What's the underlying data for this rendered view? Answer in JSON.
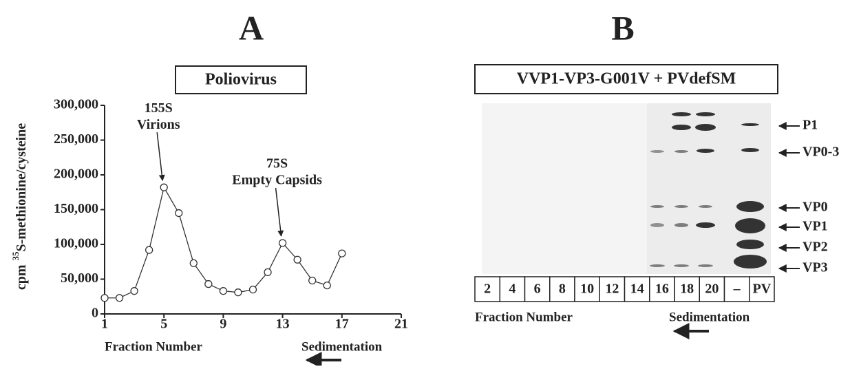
{
  "chart_data": {
    "type": "line",
    "title": "A",
    "subtitle": "Poliovirus",
    "y_label": "S-methionine/cysteine",
    "y_label_prefix": "cpm",
    "y_label_superscript": "35",
    "x_label": "Fraction Number",
    "x_direction_label": "Sedimentation",
    "x": [
      1,
      2,
      3,
      4,
      5,
      6,
      7,
      8,
      9,
      10,
      11,
      12,
      13,
      14,
      15,
      16,
      17
    ],
    "values": [
      23000,
      23000,
      33000,
      92000,
      182000,
      145000,
      73000,
      43000,
      33000,
      31000,
      35000,
      60000,
      102000,
      78000,
      48000,
      41000,
      87000
    ],
    "color": "#333333",
    "xlim": [
      1,
      21
    ],
    "xticks": [
      1,
      5,
      9,
      13,
      17,
      21
    ],
    "ylim": [
      0,
      300000
    ],
    "yticks": [
      0,
      {
        "value": 50000,
        "label": "50,000"
      },
      {
        "value": 100000,
        "label": "100,000"
      },
      {
        "value": 150000,
        "label": "150,000"
      },
      {
        "value": 200000,
        "label": "200,000"
      },
      {
        "value": 250000,
        "label": "250,000"
      },
      {
        "value": 300000,
        "label": "300,000"
      }
    ],
    "annotations": [
      {
        "lines": [
          "155S",
          "Virions"
        ],
        "x": 5
      },
      {
        "lines": [
          "75S",
          "Empty Capsids"
        ],
        "x": 13
      }
    ]
  },
  "panel_b": {
    "title": "B",
    "subtitle": "VVP1-VP3-G001V + PVdefSM",
    "lanes": [
      "2",
      "4",
      "6",
      "8",
      "10",
      "12",
      "14",
      "16",
      "18",
      "20",
      "–",
      "PV"
    ],
    "bands": [
      "P1",
      "VP0-3",
      "VP0",
      "VP1",
      "VP2",
      "VP3"
    ],
    "x_label": "Fraction Number",
    "x_direction_label": "Sedimentation"
  }
}
